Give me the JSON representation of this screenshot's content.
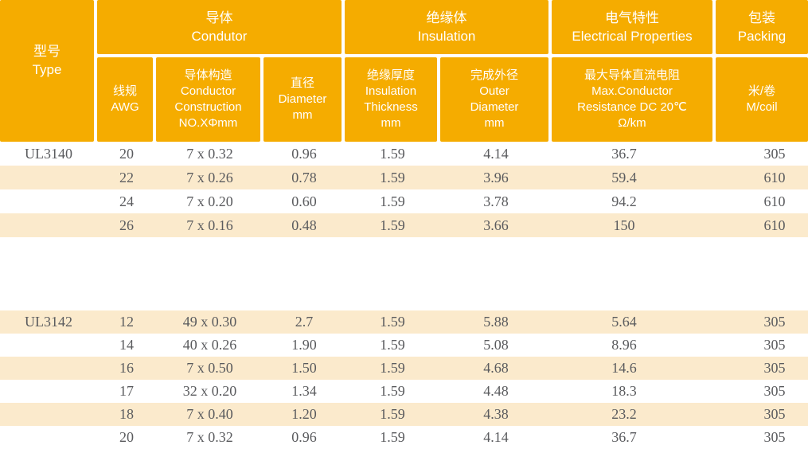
{
  "colors": {
    "header_bg": "#F5AC00",
    "stripe_bg": "#FBEACC",
    "header_text": "#FFFFFF",
    "data_text": "#5A5B5E",
    "page_bg": "#FFFFFF"
  },
  "header": {
    "type": {
      "zh": "型号",
      "en": "Type"
    },
    "groups": [
      {
        "id": "conductor",
        "zh": "导体",
        "en": "Condutor"
      },
      {
        "id": "insulation",
        "zh": "绝缘体",
        "en": "Insulation"
      },
      {
        "id": "electrical",
        "zh": "电气特性",
        "en": "Electrical Properties"
      },
      {
        "id": "packing",
        "zh": "包装",
        "en": "Packing"
      }
    ],
    "subheaders": [
      {
        "id": "awg",
        "lines": [
          "线规",
          "AWG"
        ]
      },
      {
        "id": "construction",
        "lines": [
          "导体构造",
          "Conductor",
          "Construction",
          "NO.XΦmm"
        ]
      },
      {
        "id": "diameter",
        "lines": [
          "直径",
          "Diameter",
          "mm"
        ]
      },
      {
        "id": "insulation-thickness",
        "lines": [
          "绝缘厚度",
          "Insulation",
          "Thickness",
          "mm"
        ]
      },
      {
        "id": "outer-diameter",
        "lines": [
          "完成外径",
          "Outer",
          "Diameter",
          "mm"
        ]
      },
      {
        "id": "max-resistance",
        "lines": [
          "最大导体直流电阻",
          "Max.Conductor",
          "Resistance DC 20℃",
          "Ω/km"
        ]
      },
      {
        "id": "m-per-coil",
        "lines": [
          "米/卷",
          "M/coil"
        ]
      }
    ]
  },
  "sections": [
    {
      "type_label": "UL3140",
      "stripe_offset": 1,
      "rows": [
        [
          "20",
          "7 x 0.32",
          "0.96",
          "1.59",
          "4.14",
          "36.7",
          "305"
        ],
        [
          "22",
          "7 x 0.26",
          "0.78",
          "1.59",
          "3.96",
          "59.4",
          "610"
        ],
        [
          "24",
          "7 x 0.20",
          "0.60",
          "1.59",
          "3.78",
          "94.2",
          "610"
        ],
        [
          "26",
          "7 x 0.16",
          "0.48",
          "1.59",
          "3.66",
          "150",
          "610"
        ]
      ]
    },
    {
      "type_label": "UL3142",
      "stripe_offset": 0,
      "rows": [
        [
          "12",
          "49 x 0.30",
          "2.7",
          "1.59",
          "5.88",
          "5.64",
          "305"
        ],
        [
          "14",
          "40 x 0.26",
          "1.90",
          "1.59",
          "5.08",
          "8.96",
          "305"
        ],
        [
          "16",
          "7 x 0.50",
          "1.50",
          "1.59",
          "4.68",
          "14.6",
          "305"
        ],
        [
          "17",
          "32 x 0.20",
          "1.34",
          "1.59",
          "4.48",
          "18.3",
          "305"
        ],
        [
          "18",
          "7 x 0.40",
          "1.20",
          "1.59",
          "4.38",
          "23.2",
          "305"
        ],
        [
          "20",
          "7 x 0.32",
          "0.96",
          "1.59",
          "4.14",
          "36.7",
          "305"
        ]
      ]
    }
  ]
}
